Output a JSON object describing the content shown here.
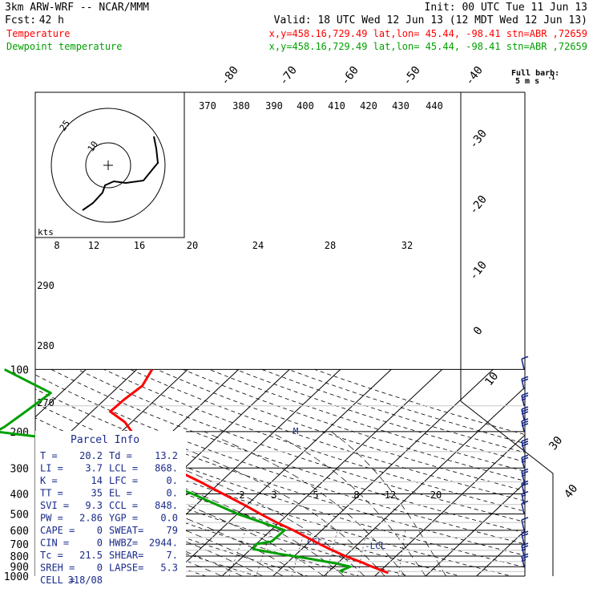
{
  "header": {
    "model": "3km ARW-WRF -- NCAR/MMM",
    "init": "Init: 00 UTC Tue 11 Jun 13",
    "fcst_label": "Fcst:",
    "fcst_value": "42 h",
    "valid": "Valid: 18 UTC Wed 12 Jun 13 (12 MDT Wed 12 Jun 13)"
  },
  "legend": [
    {
      "name": "Temperature",
      "info": "x,y=458.16,729.49  lat,lon= 45.44, -98.41  stn=ABR ,72659",
      "color": "#ff0000"
    },
    {
      "name": "Dewpoint temperature",
      "info": "x,y=458.16,729.49  lat,lon= 45.44, -98.41  stn=ABR ,72659",
      "color": "#00a000"
    }
  ],
  "wind_key": {
    "title": "Full barb:",
    "value": "5 m s",
    "exponent": "-1"
  },
  "hodograph": {
    "units": "kts",
    "ring_labels": [
      "10",
      "25"
    ]
  },
  "parcel_info": {
    "title": "Parcel Info",
    "rows": [
      [
        "T  =",
        "20.2",
        "Td =",
        "13.2"
      ],
      [
        "LI =",
        "3.7",
        "LCL =",
        "868."
      ],
      [
        "K  =",
        "14",
        "LFC =",
        "0."
      ],
      [
        "TT =",
        "35",
        "EL =",
        "0."
      ],
      [
        "SVI =",
        "9.3",
        "CCL =",
        "848."
      ],
      [
        "PW =",
        "2.86",
        "YGP =",
        "0.0"
      ],
      [
        "CAPE =",
        "0",
        "SWEAT=",
        "79"
      ],
      [
        "CIN =",
        "0",
        "HWBZ=",
        "2944."
      ],
      [
        "Tc =",
        "21.5",
        "SHEAR=",
        "7."
      ],
      [
        "SREH =",
        "0",
        "LAPSE=",
        "5.3"
      ],
      [
        "CELL =",
        "318/08",
        "",
        ""
      ]
    ]
  },
  "chart_data": {
    "type": "line",
    "diagram": "skew-T log-p",
    "pressure_axis": {
      "ticks": [
        100,
        200,
        300,
        400,
        500,
        600,
        700,
        800,
        900,
        1000
      ],
      "range": [
        1000,
        100
      ],
      "scale": "log"
    },
    "isotherm_labels": [
      "-80",
      "-70",
      "-60",
      "-50",
      "-40",
      "-30",
      "-20",
      "-10",
      "0",
      "10",
      "30",
      "40"
    ],
    "theta_labels_top": [
      "370",
      "380",
      "390",
      "400",
      "410",
      "420",
      "430",
      "440"
    ],
    "theta_labels_side": [
      "290",
      "280",
      "270"
    ],
    "mixing_ratio_labels": [
      "2",
      "3",
      "5",
      "8",
      "12",
      "20"
    ],
    "mixing_ratio_labels_upper": [
      "8",
      "12",
      "16",
      "20",
      "24",
      "28",
      "32"
    ],
    "annotations": [
      "M",
      "CCL",
      "LCL"
    ],
    "series": [
      {
        "name": "Temperature",
        "color": "#ff0000",
        "pressure": [
          965,
          900,
          850,
          800,
          750,
          700,
          650,
          600,
          550,
          500,
          450,
          400,
          350,
          300,
          270,
          250,
          230,
          220,
          200,
          180,
          160,
          140,
          120,
          100
        ],
        "temperature": [
          22,
          17.5,
          14,
          10,
          6.3,
          2.5,
          -1.4,
          -5.6,
          -10.5,
          -15.5,
          -20.8,
          -27,
          -34,
          -42.5,
          -47.5,
          -52,
          -55.3,
          -56.1,
          -58,
          -61.3,
          -66.4,
          -66.2,
          -65.5,
          -67
        ]
      },
      {
        "name": "Dewpoint temperature",
        "color": "#00a000",
        "pressure": [
          960,
          940,
          900,
          870,
          820,
          780,
          740,
          700,
          680,
          600,
          500,
          400,
          350,
          300,
          260,
          235,
          220,
          200,
          190,
          160,
          130,
          100
        ],
        "temperature": [
          13,
          12.2,
          13.2,
          10,
          3,
          -3.5,
          -9.5,
          -10,
          -7.5,
          -7.3,
          -20,
          -33,
          -41.6,
          -50.4,
          -60,
          -62.6,
          -69,
          -84.7,
          -84,
          -83,
          -82,
          -96
        ]
      }
    ],
    "wind_barbs": [
      {
        "pressure": 100,
        "speed_kts": 2
      },
      {
        "pressure": 125,
        "speed_kts": 4
      },
      {
        "pressure": 150,
        "speed_kts": 5
      },
      {
        "pressure": 175,
        "speed_kts": 6
      },
      {
        "pressure": 200,
        "speed_kts": 6
      },
      {
        "pressure": 250,
        "speed_kts": 6
      },
      {
        "pressure": 300,
        "speed_kts": 5
      },
      {
        "pressure": 350,
        "speed_kts": 5
      },
      {
        "pressure": 400,
        "speed_kts": 4
      },
      {
        "pressure": 450,
        "speed_kts": 3
      },
      {
        "pressure": 500,
        "speed_kts": 2
      },
      {
        "pressure": 600,
        "speed_kts": 2
      },
      {
        "pressure": 700,
        "speed_kts": 4
      },
      {
        "pressure": 800,
        "speed_kts": 5
      },
      {
        "pressure": 900,
        "speed_kts": 5
      }
    ]
  }
}
